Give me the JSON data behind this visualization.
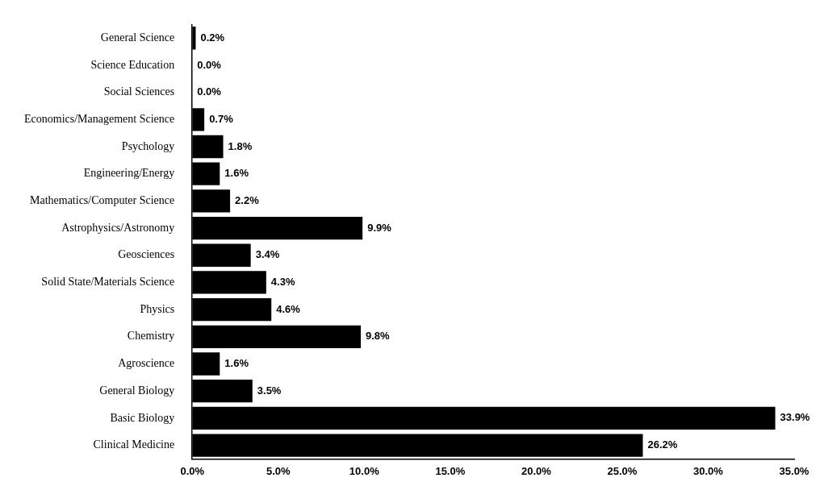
{
  "chart_data": {
    "type": "bar",
    "orientation": "horizontal",
    "categories": [
      "General Science",
      "Science Education",
      "Social Sciences",
      "Economics/Management Science",
      "Psychology",
      "Engineering/Energy",
      "Mathematics/Computer Science",
      "Astrophysics/Astronomy",
      "Geosciences",
      "Solid State/Materials Science",
      "Physics",
      "Chemistry",
      "Agroscience",
      "General Biology",
      "Basic Biology",
      "Clinical Medicine"
    ],
    "values": [
      0.2,
      0.0,
      0.0,
      0.7,
      1.8,
      1.6,
      2.2,
      9.9,
      3.4,
      4.3,
      4.6,
      9.8,
      1.6,
      3.5,
      33.9,
      26.2
    ],
    "value_labels": [
      "0.2%",
      "0.0%",
      "0.0%",
      "0.7%",
      "1.8%",
      "1.6%",
      "2.2%",
      "9.9%",
      "3.4%",
      "4.3%",
      "4.6%",
      "9.8%",
      "1.6%",
      "3.5%",
      "33.9%",
      "26.2%"
    ],
    "color": "#000000",
    "xlim": [
      0,
      35
    ],
    "xticks": [
      {
        "value": 0,
        "label": "0.0%"
      },
      {
        "value": 5,
        "label": "5.0%"
      },
      {
        "value": 10,
        "label": "10.0%"
      },
      {
        "value": 15,
        "label": "15.0%"
      },
      {
        "value": 20,
        "label": "20.0%"
      },
      {
        "value": 25,
        "label": "25.0%"
      },
      {
        "value": 30,
        "label": "30.0%"
      },
      {
        "value": 35,
        "label": "35.0%"
      }
    ],
    "grid": false,
    "legend": false
  }
}
